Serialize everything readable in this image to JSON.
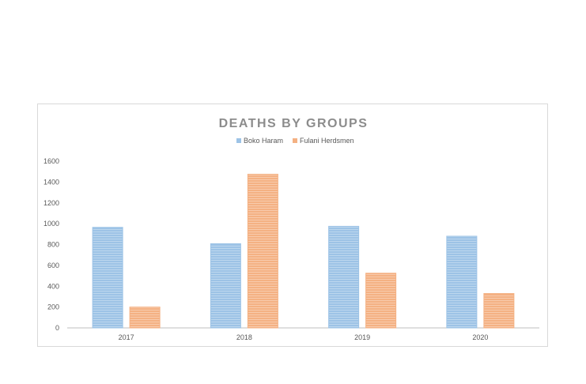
{
  "chart_data": {
    "type": "bar",
    "title": "DEATHS BY GROUPS",
    "xlabel": "",
    "ylabel": "",
    "categories": [
      "2017",
      "2018",
      "2019",
      "2020"
    ],
    "series": [
      {
        "name": "Boko Haram",
        "values": [
          965,
          808,
          975,
          880
        ],
        "color": "#9DC3E6"
      },
      {
        "name": "Fulani Herdsmen",
        "values": [
          200,
          1475,
          525,
          330
        ],
        "color": "#F4B183"
      }
    ],
    "ylim": [
      0,
      1600
    ],
    "yticks": [
      "0",
      "200",
      "400",
      "600",
      "800",
      "1000",
      "1200",
      "1400",
      "1600"
    ],
    "grid": false,
    "legend_position": "top",
    "colors": {
      "title": "#8c8c8c",
      "axis": "#bfbfbf",
      "text": "#595959"
    }
  }
}
